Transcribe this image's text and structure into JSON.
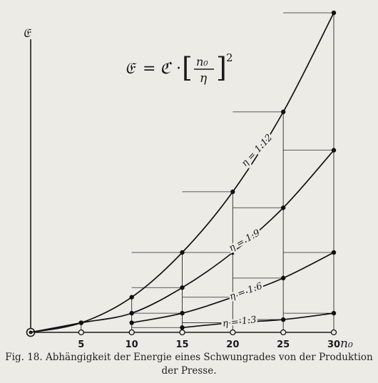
{
  "caption": {
    "line1": "Fig. 18. Abhängigkeit der Energie eines Schwungrades von der Produktion",
    "line2": "der Presse."
  },
  "formula": {
    "lhs": "𝔈",
    "eq": "=",
    "const": "ℭ",
    "dot": "·",
    "open": "[",
    "num": "n₀",
    "den": "η",
    "close": "]",
    "exp": "2"
  },
  "chart_data": {
    "type": "line",
    "title": "",
    "xlabel": "n₀",
    "ylabel": "𝔈",
    "x": [
      5,
      10,
      15,
      20,
      25,
      30
    ],
    "xlim": [
      0,
      30
    ],
    "ylim": [
      0,
      1
    ],
    "grid": false,
    "series": [
      {
        "name": "η = 1:12",
        "x": [
          0,
          5,
          10,
          15,
          20,
          25,
          30
        ],
        "values": [
          0,
          0.03,
          0.11,
          0.25,
          0.44,
          0.69,
          1.0
        ]
      },
      {
        "name": "η = 1:9",
        "x": [
          0,
          5,
          10,
          15,
          20,
          25,
          30
        ],
        "values": [
          0,
          0.03,
          0.06,
          0.14,
          0.25,
          0.39,
          0.57
        ]
      },
      {
        "name": "η = 1:6",
        "x": [
          10,
          15,
          20,
          25,
          30
        ],
        "values": [
          0.03,
          0.06,
          0.11,
          0.17,
          0.25
        ]
      },
      {
        "name": "η = 1:3",
        "x": [
          15,
          20,
          25,
          30
        ],
        "values": [
          0.015,
          0.03,
          0.04,
          0.06
        ]
      }
    ]
  }
}
